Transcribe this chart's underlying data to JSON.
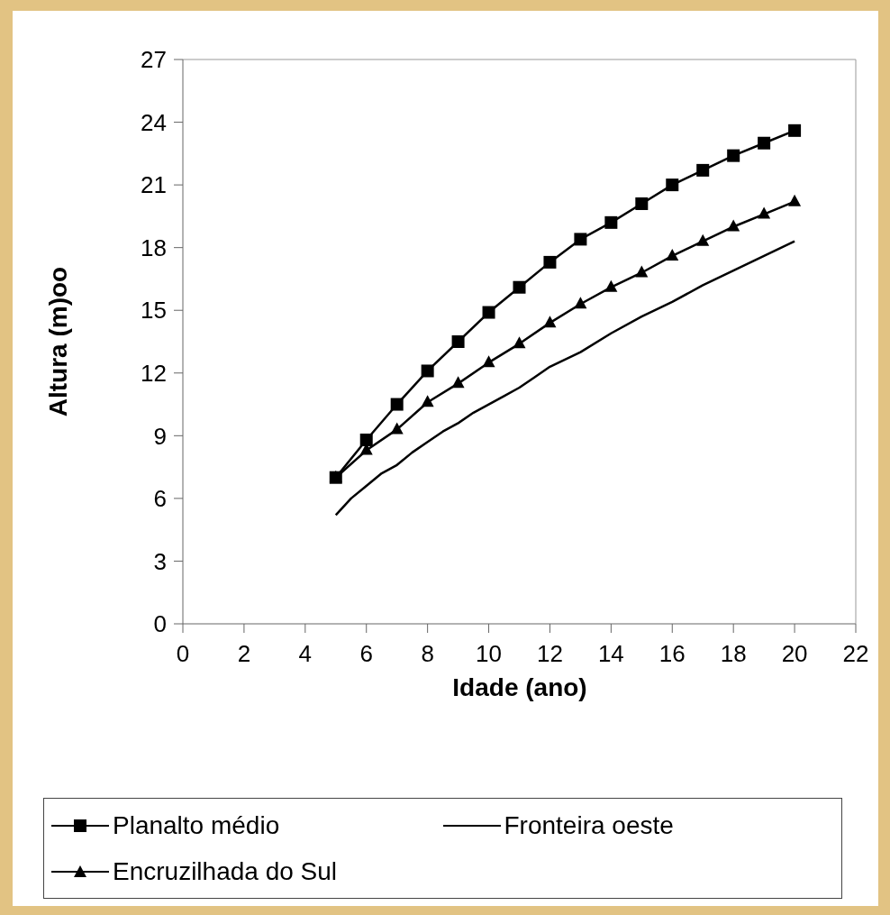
{
  "chart_data": {
    "type": "line",
    "xlabel": "Idade (ano)",
    "ylabel": "Altura (m)oo",
    "xlim": [
      0,
      22
    ],
    "xticks": [
      0,
      2,
      4,
      6,
      8,
      10,
      12,
      14,
      16,
      18,
      20,
      22
    ],
    "ylim": [
      0,
      27
    ],
    "yticks": [
      0,
      3,
      6,
      9,
      12,
      15,
      18,
      21,
      24,
      27
    ],
    "grid": false,
    "legend": "bottom",
    "series": [
      {
        "name": "Planalto médio",
        "color": "#000000",
        "marker": "square",
        "x": [
          5,
          6,
          7,
          8,
          9,
          10,
          11,
          12,
          13,
          14,
          15,
          16,
          17,
          18,
          19,
          20
        ],
        "values": [
          7.0,
          8.8,
          10.5,
          12.1,
          13.5,
          14.9,
          16.1,
          17.3,
          18.4,
          19.2,
          20.1,
          21.0,
          21.7,
          22.4,
          23.0,
          23.6
        ]
      },
      {
        "name": "Fronteira oeste",
        "color": "#000000",
        "marker": "none",
        "x": [
          5,
          5.5,
          6,
          6.5,
          7,
          7.5,
          8,
          8.5,
          9,
          9.5,
          10,
          10.5,
          11,
          11.5,
          12,
          13,
          14,
          15,
          16,
          17,
          18,
          19,
          20
        ],
        "values": [
          5.2,
          6.0,
          6.6,
          7.2,
          7.6,
          8.2,
          8.7,
          9.2,
          9.6,
          10.1,
          10.5,
          10.9,
          11.3,
          11.8,
          12.3,
          13.0,
          13.9,
          14.7,
          15.4,
          16.2,
          16.9,
          17.6,
          18.3
        ]
      },
      {
        "name": "Encruzilhada do Sul",
        "color": "#000000",
        "marker": "triangle",
        "x": [
          5,
          6,
          7,
          8,
          9,
          10,
          11,
          12,
          13,
          14,
          15,
          16,
          17,
          18,
          19,
          20
        ],
        "values": [
          7.0,
          8.3,
          9.3,
          10.6,
          11.5,
          12.5,
          13.4,
          14.4,
          15.3,
          16.1,
          16.8,
          17.6,
          18.3,
          19.0,
          19.6,
          20.2
        ]
      }
    ]
  }
}
